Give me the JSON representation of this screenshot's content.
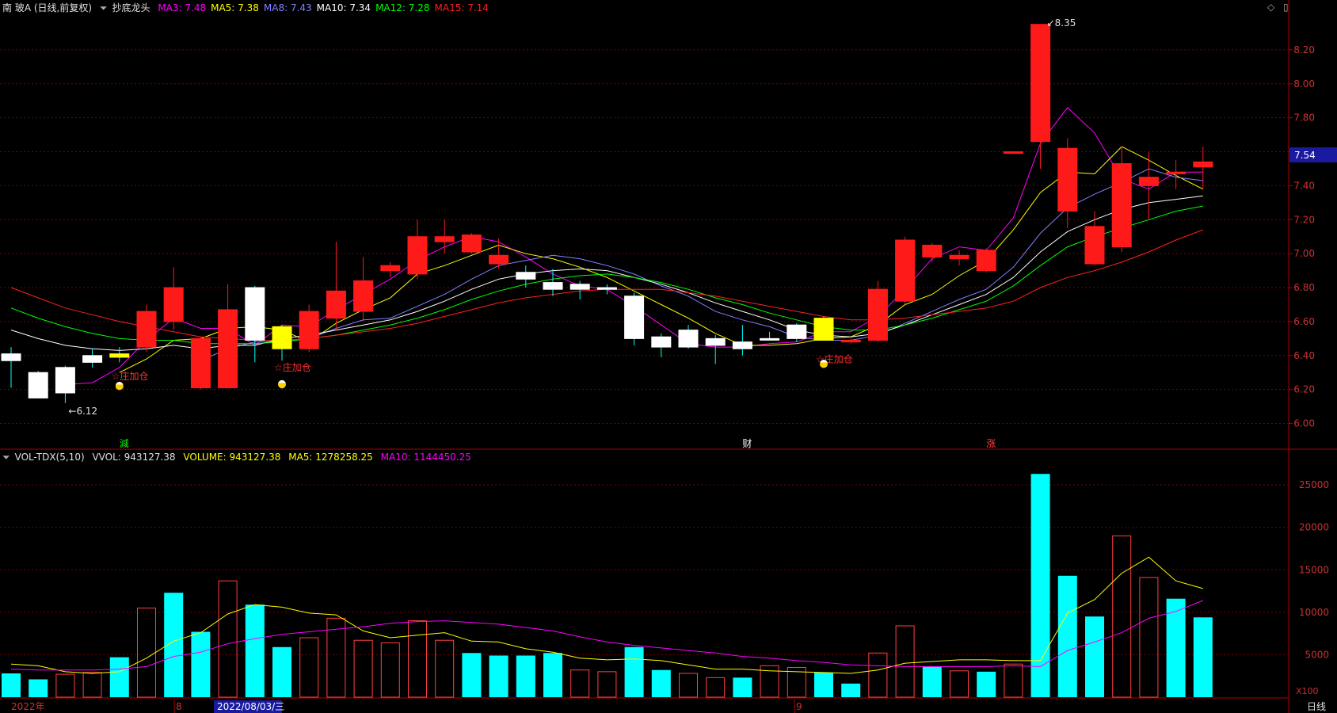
{
  "header": {
    "stock_title": "南 玻A (日线,前复权)",
    "indicator_name": "抄底龙头",
    "ma_items": [
      {
        "label": "MA3: 7.48",
        "color": "#ff00ff"
      },
      {
        "label": "MA5: 7.38",
        "color": "#ffff00"
      },
      {
        "label": "MA8: 7.43",
        "color": "#8080ff"
      },
      {
        "label": "MA10: 7.34",
        "color": "#ffffff"
      },
      {
        "label": "MA12: 7.28",
        "color": "#00ff00"
      },
      {
        "label": "MA15: 7.14",
        "color": "#ff2020"
      }
    ]
  },
  "vol_header": {
    "name": "VOL-TDX(5,10)",
    "vvol": "VVOL: 943127.38",
    "volume": "VOLUME: 943127.38",
    "ma5": "MA5: 1278258.25",
    "ma10": "MA10: 1144450.25"
  },
  "price_axis": {
    "ticks": [
      "8.20",
      "8.00",
      "7.80",
      "7.60",
      "7.40",
      "7.20",
      "7.00",
      "6.80",
      "6.60",
      "6.40",
      "6.20",
      "6.00"
    ],
    "current": "7.54"
  },
  "vol_axis": {
    "ticks": [
      "25000",
      "20000",
      "15000",
      "10000",
      "5000"
    ],
    "unit": "X100"
  },
  "annotations": {
    "high": "8.35",
    "low": "6.12",
    "signal": "庄加仓"
  },
  "markers": [
    "減",
    "财",
    "涨"
  ],
  "bottom": {
    "year": "2022年",
    "month8": "8",
    "date_badge": "2022/08/03/三",
    "month9": "9",
    "period": "日线"
  },
  "colors": {
    "up": "#ff1a1a",
    "down": "#00ffff",
    "bg": "#000000",
    "grid": "#7a0000",
    "axis_text": "#c83232"
  },
  "chart_data": {
    "type": "candlestick",
    "candles": [
      [
        6.41,
        6.37,
        6.45,
        6.21,
        0
      ],
      [
        6.3,
        6.15,
        6.31,
        6.15,
        0
      ],
      [
        6.33,
        6.18,
        6.34,
        6.12,
        0
      ],
      [
        6.36,
        6.4,
        6.44,
        6.33,
        0
      ],
      [
        6.39,
        6.41,
        6.45,
        6.36,
        2
      ],
      [
        6.45,
        6.66,
        6.7,
        6.42,
        1
      ],
      [
        6.6,
        6.8,
        6.92,
        6.55,
        1
      ],
      [
        6.5,
        6.21,
        6.51,
        6.2,
        1
      ],
      [
        6.21,
        6.67,
        6.82,
        6.21,
        1
      ],
      [
        6.8,
        6.49,
        6.81,
        6.36,
        0
      ],
      [
        6.44,
        6.57,
        6.58,
        6.37,
        2
      ],
      [
        6.44,
        6.66,
        6.7,
        6.42,
        1
      ],
      [
        6.62,
        6.78,
        7.07,
        6.55,
        1
      ],
      [
        6.66,
        6.84,
        6.98,
        6.6,
        1
      ],
      [
        6.9,
        6.93,
        6.95,
        6.86,
        1
      ],
      [
        6.88,
        7.1,
        7.2,
        6.85,
        1
      ],
      [
        7.07,
        7.1,
        7.2,
        7.0,
        1
      ],
      [
        7.01,
        7.11,
        7.12,
        7.0,
        1
      ],
      [
        6.94,
        6.99,
        7.09,
        6.91,
        1
      ],
      [
        6.89,
        6.85,
        6.93,
        6.8,
        0
      ],
      [
        6.83,
        6.79,
        6.91,
        6.75,
        0
      ],
      [
        6.82,
        6.79,
        6.84,
        6.73,
        0
      ],
      [
        6.8,
        6.79,
        6.82,
        6.76,
        0
      ],
      [
        6.75,
        6.5,
        6.77,
        6.46,
        0
      ],
      [
        6.51,
        6.45,
        6.53,
        6.39,
        0
      ],
      [
        6.55,
        6.45,
        6.58,
        6.44,
        0
      ],
      [
        6.5,
        6.46,
        6.52,
        6.35,
        0
      ],
      [
        6.48,
        6.44,
        6.58,
        6.4,
        0
      ],
      [
        6.5,
        6.5,
        6.54,
        6.49,
        0
      ],
      [
        6.58,
        6.5,
        6.59,
        6.48,
        0
      ],
      [
        6.49,
        6.62,
        6.63,
        6.49,
        2
      ],
      [
        6.48,
        6.49,
        6.5,
        6.47,
        1
      ],
      [
        6.49,
        6.79,
        6.84,
        6.48,
        1
      ],
      [
        6.72,
        7.08,
        7.1,
        6.7,
        1
      ],
      [
        6.98,
        7.05,
        7.06,
        6.95,
        1
      ],
      [
        6.97,
        6.99,
        7.02,
        6.93,
        1
      ],
      [
        6.9,
        7.02,
        7.03,
        6.89,
        1
      ],
      [
        7.59,
        7.6,
        7.6,
        7.59,
        1
      ],
      [
        7.66,
        8.35,
        8.35,
        7.5,
        1
      ],
      [
        7.25,
        7.62,
        7.68,
        7.15,
        1
      ],
      [
        6.94,
        7.16,
        7.25,
        6.93,
        1
      ],
      [
        7.04,
        7.53,
        7.63,
        7.01,
        1
      ],
      [
        7.4,
        7.45,
        7.6,
        7.2,
        1
      ],
      [
        7.48,
        7.47,
        7.55,
        7.38,
        1
      ],
      [
        7.51,
        7.54,
        7.63,
        7.38,
        1
      ]
    ],
    "volume": [
      2800,
      2100,
      2700,
      2900,
      4700,
      10500,
      12300,
      7700,
      13700,
      10900,
      5900,
      7000,
      9300,
      6700,
      6400,
      9000,
      6700,
      5200,
      4900,
      4900,
      5200,
      3200,
      3000,
      5900,
      3200,
      2800,
      2300,
      2300,
      3700,
      3500,
      2900,
      1600,
      5200,
      8400,
      3600,
      3100,
      3000,
      3900,
      26300,
      14300,
      9500,
      19000,
      14100,
      11600,
      9400
    ],
    "volume_up": [
      0,
      0,
      1,
      1,
      0,
      1,
      0,
      0,
      1,
      0,
      0,
      1,
      1,
      1,
      1,
      1,
      1,
      0,
      0,
      0,
      0,
      1,
      1,
      0,
      0,
      1,
      1,
      0,
      1,
      1,
      0,
      0,
      1,
      1,
      0,
      1,
      0,
      1,
      0,
      0,
      0,
      1,
      1,
      0,
      0
    ],
    "ma": {
      "ma3": [
        null,
        null,
        6.23,
        6.24,
        6.33,
        6.49,
        6.62,
        6.56,
        6.56,
        6.46,
        6.58,
        6.57,
        6.67,
        6.76,
        6.85,
        6.96,
        7.04,
        7.1,
        7.07,
        6.98,
        6.88,
        6.81,
        6.79,
        6.69,
        6.58,
        6.47,
        6.45,
        6.45,
        6.47,
        6.48,
        6.54,
        6.54,
        6.63,
        6.79,
        6.97,
        7.04,
        7.02,
        7.21,
        7.65,
        7.86,
        7.71,
        7.44,
        7.38,
        7.48,
        7.48
      ],
      "ma5": [
        null,
        null,
        null,
        null,
        6.3,
        6.38,
        6.49,
        6.5,
        6.56,
        6.57,
        6.55,
        6.48,
        6.59,
        6.67,
        6.74,
        6.88,
        6.93,
        6.99,
        7.05,
        7.0,
        6.97,
        6.92,
        6.86,
        6.78,
        6.7,
        6.62,
        6.53,
        6.46,
        6.46,
        6.47,
        6.5,
        6.51,
        6.58,
        6.7,
        6.76,
        6.87,
        6.96,
        7.14,
        7.36,
        7.48,
        7.47,
        7.63,
        7.55,
        7.46,
        7.38
      ],
      "ma8": [
        null,
        null,
        null,
        null,
        null,
        null,
        null,
        6.37,
        6.44,
        6.48,
        6.48,
        6.5,
        6.56,
        6.61,
        6.62,
        6.69,
        6.76,
        6.85,
        6.93,
        6.96,
        6.99,
        6.97,
        6.93,
        6.88,
        6.81,
        6.75,
        6.66,
        6.61,
        6.57,
        6.51,
        6.49,
        6.49,
        6.52,
        6.59,
        6.66,
        6.73,
        6.79,
        6.92,
        7.12,
        7.27,
        7.35,
        7.42,
        7.5,
        7.45,
        7.43
      ],
      "ma10": [
        6.55,
        6.5,
        6.46,
        6.44,
        6.43,
        6.44,
        6.46,
        6.44,
        6.46,
        6.46,
        6.5,
        6.52,
        6.55,
        6.58,
        6.61,
        6.66,
        6.72,
        6.79,
        6.85,
        6.88,
        6.9,
        6.91,
        6.9,
        6.86,
        6.82,
        6.77,
        6.71,
        6.66,
        6.61,
        6.55,
        6.52,
        6.51,
        6.53,
        6.58,
        6.64,
        6.7,
        6.76,
        6.86,
        7.01,
        7.13,
        7.2,
        7.26,
        7.3,
        7.32,
        7.34
      ],
      "ma12": [
        6.68,
        6.62,
        6.57,
        6.53,
        6.5,
        6.49,
        6.49,
        6.47,
        6.47,
        6.47,
        6.48,
        6.5,
        6.52,
        6.55,
        6.58,
        6.62,
        6.67,
        6.73,
        6.78,
        6.82,
        6.85,
        6.87,
        6.88,
        6.86,
        6.83,
        6.79,
        6.74,
        6.7,
        6.65,
        6.61,
        6.57,
        6.55,
        6.55,
        6.58,
        6.62,
        6.67,
        6.72,
        6.81,
        6.93,
        7.04,
        7.1,
        7.15,
        7.2,
        7.25,
        7.28
      ],
      "ma15": [
        6.8,
        6.74,
        6.68,
        6.64,
        6.6,
        6.57,
        6.54,
        6.51,
        6.5,
        6.49,
        6.49,
        6.5,
        6.52,
        6.54,
        6.56,
        6.59,
        6.63,
        6.67,
        6.71,
        6.74,
        6.76,
        6.78,
        6.79,
        6.79,
        6.79,
        6.77,
        6.75,
        6.72,
        6.69,
        6.66,
        6.63,
        6.61,
        6.61,
        6.62,
        6.64,
        6.66,
        6.68,
        6.72,
        6.8,
        6.86,
        6.9,
        6.95,
        7.01,
        7.08,
        7.14
      ]
    },
    "vol_ma5": [
      3900,
      3700,
      3000,
      2800,
      3000,
      4600,
      6600,
      7600,
      9800,
      10900,
      10600,
      9900,
      9700,
      7800,
      7000,
      7300,
      7600,
      6600,
      6500,
      5700,
      5300,
      4600,
      4400,
      4500,
      4300,
      3800,
      3300,
      3300,
      3100,
      3000,
      2900,
      2800,
      3200,
      4000,
      4200,
      4400,
      4400,
      4300,
      4300,
      9900,
      11500,
      14600,
      16500,
      13700,
      12800
    ],
    "vol_ma10": [
      3300,
      3200,
      3200,
      3200,
      3300,
      3600,
      4800,
      5300,
      6300,
      6900,
      7400,
      7700,
      8000,
      8300,
      8700,
      8900,
      9000,
      8800,
      8600,
      8200,
      7800,
      7100,
      6500,
      6100,
      5800,
      5500,
      5200,
      4800,
      4600,
      4300,
      4100,
      3800,
      3700,
      3600,
      3600,
      3600,
      3600,
      3700,
      3600,
      5500,
      6500,
      7600,
      9300,
      10100,
      11400
    ],
    "signals": [
      4,
      10,
      30
    ],
    "signal_coins": [
      4,
      10,
      30
    ],
    "ylim": [
      5.9,
      8.4
    ],
    "vol_ylim": [
      0,
      28000
    ]
  }
}
